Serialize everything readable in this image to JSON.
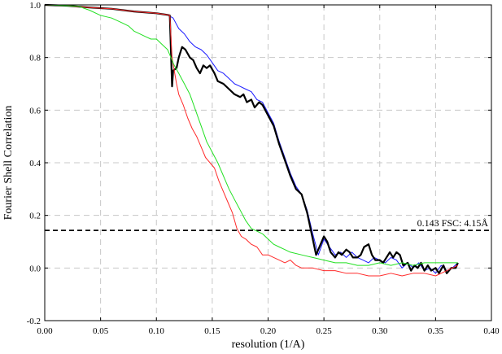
{
  "chart_data": {
    "type": "line",
    "title": "",
    "xlabel": "resolution (1/A)",
    "ylabel": "Fourier Shell Correlation",
    "xlim": [
      0,
      0.4
    ],
    "ylim": [
      -0.2,
      1.0
    ],
    "x_ticks": [
      "0.00",
      "0.05",
      "0.10",
      "0.15",
      "0.20",
      "0.25",
      "0.30",
      "0.35",
      "0.40"
    ],
    "y_ticks": [
      "-0.2",
      "0.0",
      "0.2",
      "0.4",
      "0.6",
      "0.8",
      "1.0"
    ],
    "grid": true,
    "grid_style": "dashed",
    "threshold": {
      "y": 0.143,
      "label": "0.143 FSC: 4.15Å",
      "style": "dashed",
      "color": "#000000"
    },
    "series": [
      {
        "color": "#1a1aff",
        "points": [
          [
            0.0,
            1.0
          ],
          [
            0.02,
            0.997
          ],
          [
            0.04,
            0.99
          ],
          [
            0.06,
            0.985
          ],
          [
            0.08,
            0.975
          ],
          [
            0.1,
            0.968
          ],
          [
            0.11,
            0.962
          ],
          [
            0.115,
            0.95
          ],
          [
            0.12,
            0.91
          ],
          [
            0.125,
            0.89
          ],
          [
            0.13,
            0.86
          ],
          [
            0.135,
            0.84
          ],
          [
            0.14,
            0.83
          ],
          [
            0.145,
            0.81
          ],
          [
            0.15,
            0.78
          ],
          [
            0.155,
            0.75
          ],
          [
            0.16,
            0.74
          ],
          [
            0.165,
            0.72
          ],
          [
            0.17,
            0.7
          ],
          [
            0.175,
            0.69
          ],
          [
            0.18,
            0.68
          ],
          [
            0.185,
            0.67
          ],
          [
            0.19,
            0.64
          ],
          [
            0.195,
            0.63
          ],
          [
            0.2,
            0.59
          ],
          [
            0.205,
            0.55
          ],
          [
            0.21,
            0.48
          ],
          [
            0.215,
            0.42
          ],
          [
            0.22,
            0.36
          ],
          [
            0.225,
            0.31
          ],
          [
            0.23,
            0.28
          ],
          [
            0.235,
            0.22
          ],
          [
            0.24,
            0.13
          ],
          [
            0.245,
            0.05
          ],
          [
            0.25,
            0.11
          ],
          [
            0.255,
            0.08
          ],
          [
            0.26,
            0.05
          ],
          [
            0.265,
            0.06
          ],
          [
            0.27,
            0.04
          ],
          [
            0.275,
            0.06
          ],
          [
            0.28,
            0.04
          ],
          [
            0.285,
            0.03
          ],
          [
            0.29,
            0.02
          ],
          [
            0.295,
            0.04
          ],
          [
            0.3,
            0.03
          ],
          [
            0.305,
            0.02
          ],
          [
            0.31,
            0.04
          ],
          [
            0.315,
            0.03
          ],
          [
            0.32,
            0.0
          ],
          [
            0.325,
            0.02
          ],
          [
            0.33,
            0.0
          ],
          [
            0.335,
            0.02
          ],
          [
            0.34,
            -0.01
          ],
          [
            0.345,
            0.0
          ],
          [
            0.35,
            -0.02
          ],
          [
            0.355,
            0.01
          ],
          [
            0.36,
            -0.01
          ],
          [
            0.365,
            0.0
          ],
          [
            0.37,
            0.02
          ]
        ]
      },
      {
        "color": "#000000",
        "points": [
          [
            0.0,
            1.0
          ],
          [
            0.02,
            0.997
          ],
          [
            0.04,
            0.99
          ],
          [
            0.06,
            0.985
          ],
          [
            0.08,
            0.975
          ],
          [
            0.1,
            0.968
          ],
          [
            0.11,
            0.962
          ],
          [
            0.112,
            0.96
          ],
          [
            0.114,
            0.69
          ],
          [
            0.115,
            0.75
          ],
          [
            0.118,
            0.76
          ],
          [
            0.12,
            0.8
          ],
          [
            0.123,
            0.84
          ],
          [
            0.126,
            0.83
          ],
          [
            0.13,
            0.8
          ],
          [
            0.133,
            0.79
          ],
          [
            0.136,
            0.76
          ],
          [
            0.139,
            0.74
          ],
          [
            0.142,
            0.77
          ],
          [
            0.145,
            0.76
          ],
          [
            0.148,
            0.77
          ],
          [
            0.152,
            0.74
          ],
          [
            0.155,
            0.71
          ],
          [
            0.16,
            0.7
          ],
          [
            0.165,
            0.68
          ],
          [
            0.17,
            0.66
          ],
          [
            0.175,
            0.65
          ],
          [
            0.178,
            0.66
          ],
          [
            0.181,
            0.63
          ],
          [
            0.185,
            0.64
          ],
          [
            0.188,
            0.61
          ],
          [
            0.192,
            0.63
          ],
          [
            0.195,
            0.62
          ],
          [
            0.2,
            0.58
          ],
          [
            0.205,
            0.54
          ],
          [
            0.21,
            0.47
          ],
          [
            0.215,
            0.41
          ],
          [
            0.22,
            0.35
          ],
          [
            0.225,
            0.3
          ],
          [
            0.23,
            0.28
          ],
          [
            0.235,
            0.21
          ],
          [
            0.24,
            0.11
          ],
          [
            0.243,
            0.05
          ],
          [
            0.246,
            0.08
          ],
          [
            0.25,
            0.12
          ],
          [
            0.253,
            0.1
          ],
          [
            0.256,
            0.06
          ],
          [
            0.26,
            0.04
          ],
          [
            0.263,
            0.06
          ],
          [
            0.266,
            0.05
          ],
          [
            0.27,
            0.07
          ],
          [
            0.273,
            0.06
          ],
          [
            0.276,
            0.04
          ],
          [
            0.28,
            0.04
          ],
          [
            0.283,
            0.05
          ],
          [
            0.286,
            0.08
          ],
          [
            0.29,
            0.09
          ],
          [
            0.293,
            0.05
          ],
          [
            0.296,
            0.03
          ],
          [
            0.3,
            0.03
          ],
          [
            0.303,
            0.02
          ],
          [
            0.306,
            0.04
          ],
          [
            0.309,
            0.06
          ],
          [
            0.312,
            0.04
          ],
          [
            0.315,
            0.06
          ],
          [
            0.318,
            0.05
          ],
          [
            0.321,
            0.01
          ],
          [
            0.325,
            0.02
          ],
          [
            0.328,
            -0.01
          ],
          [
            0.331,
            0.01
          ],
          [
            0.334,
            0.0
          ],
          [
            0.337,
            0.02
          ],
          [
            0.34,
            -0.01
          ],
          [
            0.343,
            0.01
          ],
          [
            0.346,
            -0.01
          ],
          [
            0.35,
            0.0
          ],
          [
            0.353,
            -0.02
          ],
          [
            0.357,
            0.01
          ],
          [
            0.36,
            -0.02
          ],
          [
            0.364,
            0.0
          ],
          [
            0.368,
            0.0
          ],
          [
            0.37,
            0.02
          ]
        ]
      },
      {
        "color": "#ff2a2a",
        "points": [
          [
            0.0,
            1.0
          ],
          [
            0.02,
            0.997
          ],
          [
            0.04,
            0.99
          ],
          [
            0.06,
            0.985
          ],
          [
            0.08,
            0.975
          ],
          [
            0.1,
            0.968
          ],
          [
            0.11,
            0.962
          ],
          [
            0.112,
            0.96
          ],
          [
            0.114,
            0.8
          ],
          [
            0.116,
            0.75
          ],
          [
            0.118,
            0.7
          ],
          [
            0.12,
            0.66
          ],
          [
            0.124,
            0.62
          ],
          [
            0.128,
            0.57
          ],
          [
            0.132,
            0.53
          ],
          [
            0.136,
            0.5
          ],
          [
            0.14,
            0.46
          ],
          [
            0.144,
            0.42
          ],
          [
            0.148,
            0.4
          ],
          [
            0.152,
            0.38
          ],
          [
            0.156,
            0.33
          ],
          [
            0.16,
            0.29
          ],
          [
            0.164,
            0.25
          ],
          [
            0.168,
            0.21
          ],
          [
            0.172,
            0.15
          ],
          [
            0.176,
            0.12
          ],
          [
            0.18,
            0.11
          ],
          [
            0.185,
            0.09
          ],
          [
            0.19,
            0.08
          ],
          [
            0.195,
            0.05
          ],
          [
            0.2,
            0.05
          ],
          [
            0.205,
            0.04
          ],
          [
            0.21,
            0.03
          ],
          [
            0.215,
            0.02
          ],
          [
            0.22,
            0.03
          ],
          [
            0.225,
            0.01
          ],
          [
            0.23,
            0.0
          ],
          [
            0.24,
            0.0
          ],
          [
            0.25,
            -0.01
          ],
          [
            0.26,
            -0.01
          ],
          [
            0.27,
            -0.02
          ],
          [
            0.28,
            -0.02
          ],
          [
            0.29,
            -0.03
          ],
          [
            0.3,
            -0.03
          ],
          [
            0.31,
            -0.02
          ],
          [
            0.32,
            -0.03
          ],
          [
            0.33,
            -0.02
          ],
          [
            0.34,
            -0.02
          ],
          [
            0.35,
            -0.03
          ],
          [
            0.36,
            -0.01
          ],
          [
            0.37,
            0.01
          ]
        ]
      },
      {
        "color": "#22e022",
        "points": [
          [
            0.0,
            1.0
          ],
          [
            0.03,
            0.995
          ],
          [
            0.04,
            0.98
          ],
          [
            0.05,
            0.96
          ],
          [
            0.06,
            0.95
          ],
          [
            0.07,
            0.93
          ],
          [
            0.075,
            0.92
          ],
          [
            0.08,
            0.9
          ],
          [
            0.085,
            0.89
          ],
          [
            0.09,
            0.88
          ],
          [
            0.095,
            0.87
          ],
          [
            0.1,
            0.87
          ],
          [
            0.105,
            0.85
          ],
          [
            0.11,
            0.83
          ],
          [
            0.113,
            0.8
          ],
          [
            0.116,
            0.77
          ],
          [
            0.12,
            0.74
          ],
          [
            0.125,
            0.7
          ],
          [
            0.13,
            0.66
          ],
          [
            0.135,
            0.6
          ],
          [
            0.14,
            0.54
          ],
          [
            0.145,
            0.48
          ],
          [
            0.15,
            0.44
          ],
          [
            0.155,
            0.4
          ],
          [
            0.16,
            0.35
          ],
          [
            0.165,
            0.3
          ],
          [
            0.17,
            0.26
          ],
          [
            0.175,
            0.22
          ],
          [
            0.18,
            0.18
          ],
          [
            0.185,
            0.15
          ],
          [
            0.19,
            0.14
          ],
          [
            0.195,
            0.13
          ],
          [
            0.2,
            0.11
          ],
          [
            0.205,
            0.09
          ],
          [
            0.21,
            0.08
          ],
          [
            0.215,
            0.07
          ],
          [
            0.22,
            0.06
          ],
          [
            0.23,
            0.05
          ],
          [
            0.24,
            0.04
          ],
          [
            0.25,
            0.03
          ],
          [
            0.26,
            0.02
          ],
          [
            0.27,
            0.02
          ],
          [
            0.28,
            0.01
          ],
          [
            0.29,
            0.01
          ],
          [
            0.3,
            0.02
          ],
          [
            0.31,
            0.01
          ],
          [
            0.32,
            0.02
          ],
          [
            0.33,
            0.01
          ],
          [
            0.34,
            0.02
          ],
          [
            0.35,
            0.02
          ],
          [
            0.36,
            0.02
          ],
          [
            0.37,
            0.02
          ]
        ]
      }
    ]
  }
}
